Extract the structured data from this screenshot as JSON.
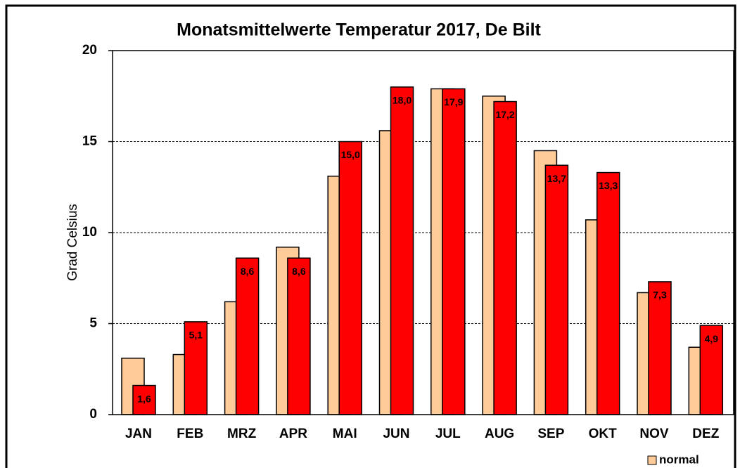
{
  "chart_data": {
    "type": "bar",
    "title": "Monatsmittelwerte Temperatur 2017, De Bilt",
    "y_label": "Grad Celsius",
    "categories": [
      "JAN",
      "FEB",
      "MRZ",
      "APR",
      "MAI",
      "JUN",
      "JUL",
      "AUG",
      "SEP",
      "OKT",
      "NOV",
      "DEZ"
    ],
    "series": [
      {
        "name": "normal",
        "color": "#ffcc99",
        "values": [
          3.1,
          3.3,
          6.2,
          9.2,
          13.1,
          15.6,
          17.9,
          17.5,
          14.5,
          10.7,
          6.7,
          3.7
        ]
      },
      {
        "color": "#ff0000",
        "values": [
          1.6,
          5.1,
          8.6,
          8.6,
          15.0,
          18.0,
          17.9,
          17.2,
          13.7,
          13.3,
          7.3,
          4.9
        ],
        "value_labels": [
          "1,6",
          "5,1",
          "8,6",
          "8,6",
          "15,0",
          "18,0",
          "17,9",
          "17,2",
          "13,7",
          "13,3",
          "7,3",
          "4,9"
        ]
      }
    ],
    "ylim": [
      0,
      20
    ],
    "yticks": [
      0,
      5,
      10,
      15,
      20
    ],
    "grid": true,
    "legend": "bottom-right"
  }
}
